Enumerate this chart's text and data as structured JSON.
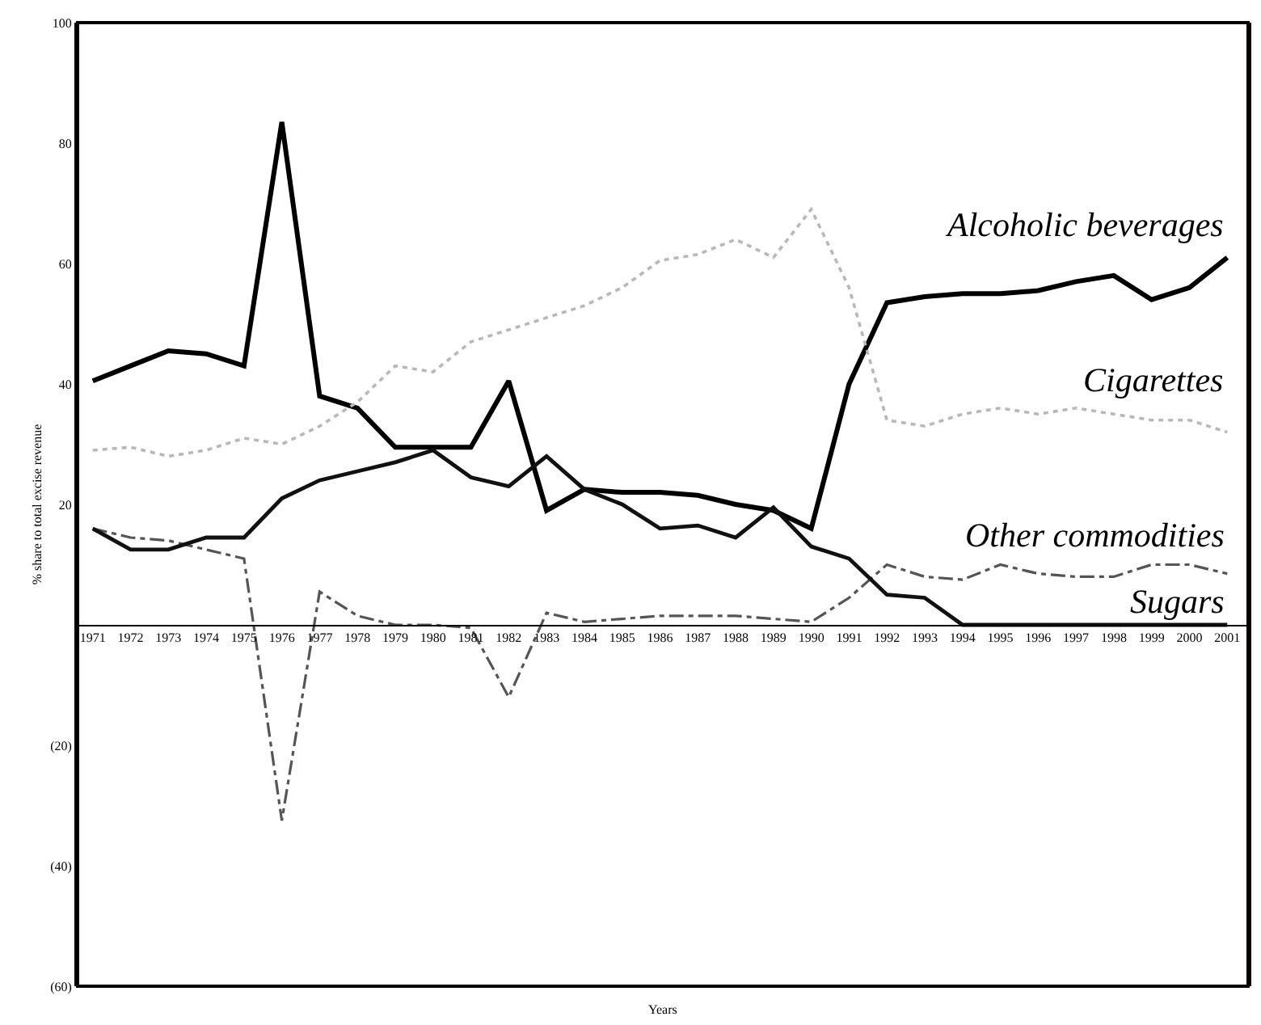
{
  "chart_data": {
    "type": "line",
    "xlabel": "Years",
    "ylabel": "% share to total excise revenue",
    "categories": [
      "1971",
      "1972",
      "1973",
      "1974",
      "1975",
      "1976",
      "1977",
      "1978",
      "1979",
      "1980",
      "1981",
      "1982",
      "1983",
      "1984",
      "1985",
      "1986",
      "1987",
      "1988",
      "1989",
      "1990",
      "1991",
      "1992",
      "1993",
      "1994",
      "1995",
      "1996",
      "1997",
      "1998",
      "1999",
      "2000",
      "2001"
    ],
    "series": [
      {
        "name": "Alcoholic beverages",
        "color": "#000000",
        "line_style": "solid",
        "values": [
          40.5,
          43,
          45.5,
          45,
          43,
          83.5,
          38,
          36,
          29.5,
          29.5,
          29.5,
          40.5,
          19,
          22.5,
          22,
          22,
          21.5,
          20,
          19,
          16,
          40,
          53.5,
          54.5,
          55,
          55,
          55.5,
          57,
          58,
          54,
          56,
          61
        ]
      },
      {
        "name": "Cigarettes",
        "color": "#b8b8b8",
        "line_style": "dotted",
        "values": [
          29,
          29.5,
          28,
          29,
          31,
          30,
          33,
          37,
          43,
          42,
          47,
          49,
          51,
          53,
          56,
          60.5,
          61.5,
          64,
          61,
          69,
          56,
          34,
          33,
          35,
          36,
          35,
          36,
          35,
          34,
          34,
          32
        ]
      },
      {
        "name": "Other commodities",
        "color": "#555555",
        "line_style": "dashed",
        "values": [
          16,
          14.5,
          14,
          12.5,
          11,
          -32.5,
          5.5,
          1.5,
          0,
          0,
          -0.5,
          -12,
          2,
          0.5,
          1,
          1.5,
          1.5,
          1.5,
          1,
          0.5,
          4.5,
          10,
          8,
          7.5,
          10,
          8.5,
          8,
          8,
          10,
          10,
          8.5
        ]
      },
      {
        "name": "Sugars",
        "color": "#111111",
        "line_style": "solid",
        "values": [
          16,
          12.5,
          12.5,
          14.5,
          14.5,
          21,
          24,
          25.5,
          27,
          29,
          24.5,
          23,
          28,
          22.5,
          20,
          16,
          16.5,
          14.5,
          19.5,
          13,
          11,
          5,
          4.5,
          0,
          0,
          0,
          0,
          0,
          0,
          0,
          0
        ]
      }
    ],
    "ylim": [
      -60,
      100
    ],
    "yticks": [
      {
        "value": -60,
        "label": "(60)"
      },
      {
        "value": -40,
        "label": "(40)"
      },
      {
        "value": -20,
        "label": "(20)"
      },
      {
        "value": 0,
        "label": null
      },
      20,
      40,
      60,
      80,
      100
    ],
    "grid": false,
    "legend": false,
    "marker": "none"
  }
}
